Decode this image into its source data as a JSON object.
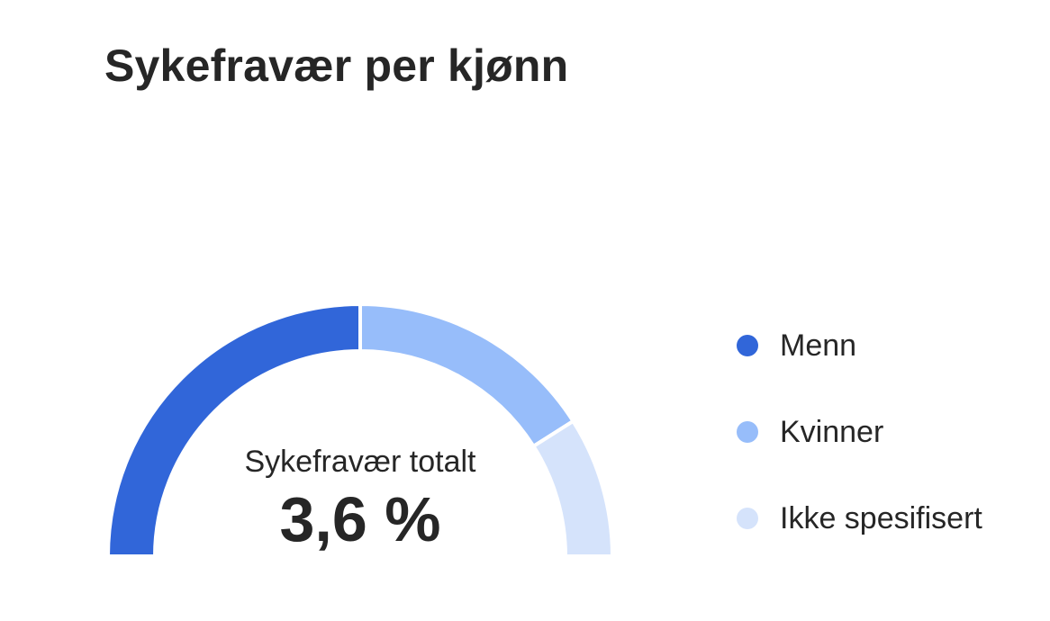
{
  "header": {
    "title": "Sykefravær per kjønn"
  },
  "gauge": {
    "center_label": "Sykefravær totalt",
    "center_value": "3,6 %"
  },
  "chart_data": {
    "type": "pie",
    "variant": "semi-donut",
    "title": "Sykefravær per kjønn",
    "series": [
      {
        "name": "Menn",
        "value": 50,
        "color": "#3166d9"
      },
      {
        "name": "Kvinner",
        "value": 32,
        "color": "#97bdfa"
      },
      {
        "name": "Ikke spesifisert",
        "value": 18,
        "color": "#d5e3fb"
      }
    ],
    "legend_position": "right"
  },
  "legend": {
    "items": [
      {
        "label": "Menn",
        "color": "#3166d9"
      },
      {
        "label": "Kvinner",
        "color": "#97bdfa"
      },
      {
        "label": "Ikke spesifisert",
        "color": "#d5e3fb"
      }
    ]
  }
}
